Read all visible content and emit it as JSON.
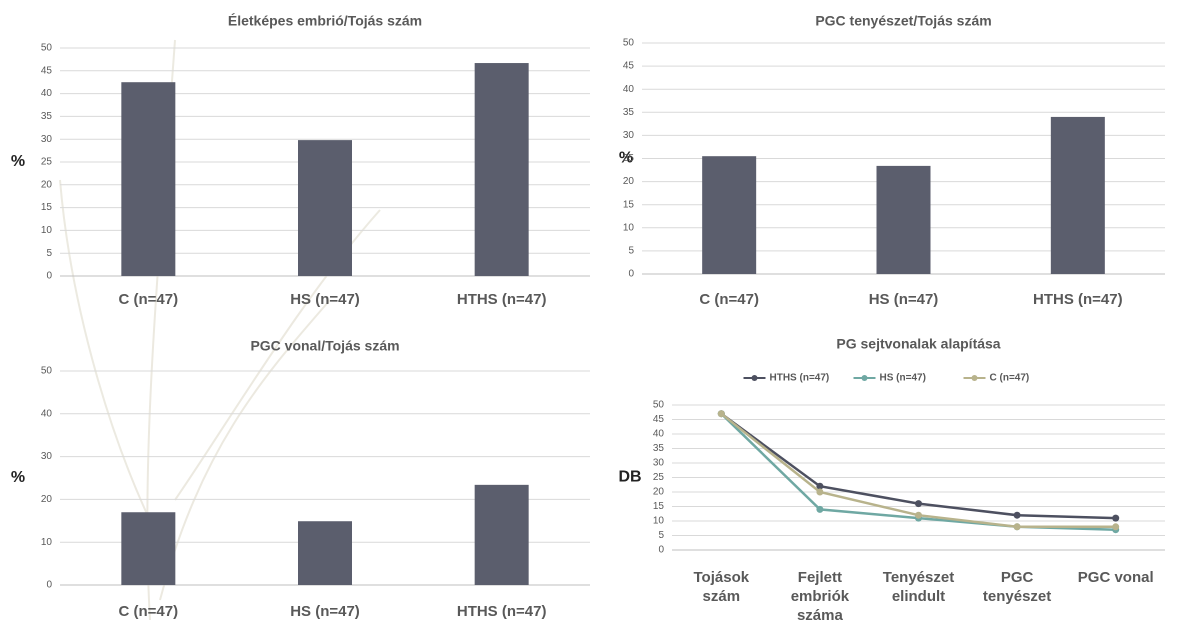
{
  "chart_data": [
    {
      "type": "bar",
      "title": "Életképes embrió/Tojás szám",
      "y_label": "%",
      "categories": [
        "C (n=47)",
        "HS (n=47)",
        "HTHS (n=47)"
      ],
      "values": [
        42.5,
        29.8,
        46.7
      ],
      "color": "#5b5e6d",
      "ylim": [
        0,
        50
      ],
      "yticks": [
        0,
        5,
        10,
        15,
        20,
        25,
        30,
        35,
        40,
        45,
        50
      ],
      "grid": true
    },
    {
      "type": "bar",
      "title": "PGC tenyészet/Tojás szám",
      "y_label": "%",
      "categories": [
        "C (n=47)",
        "HS (n=47)",
        "HTHS (n=47)"
      ],
      "values": [
        25.5,
        23.4,
        34
      ],
      "color": "#5b5e6d",
      "ylim": [
        0,
        50
      ],
      "yticks": [
        0,
        5,
        10,
        15,
        20,
        25,
        30,
        35,
        40,
        45,
        50
      ],
      "grid": true
    },
    {
      "type": "bar",
      "title": "PGC vonal/Tojás szám",
      "y_label": "%",
      "categories": [
        "C (n=47)",
        "HS (n=47)",
        "HTHS (n=47)"
      ],
      "values": [
        17,
        14.9,
        23.4
      ],
      "color": "#5b5e6d",
      "ylim": [
        0,
        50
      ],
      "yticks": [
        0,
        10,
        20,
        30,
        40,
        50
      ],
      "grid": true
    },
    {
      "type": "line",
      "title": "PG sejtvonalak alapítása",
      "y_label": "DB",
      "categories": [
        "Tojások szám",
        "Fejlett embriók száma",
        "Tenyészet elindult",
        "PGC tenyészet",
        "PGC vonal"
      ],
      "series": [
        {
          "name": "HTHS (n=47)",
          "color": "#4d5060",
          "values": [
            47,
            22,
            16,
            12,
            11
          ]
        },
        {
          "name": "HS (n=47)",
          "color": "#6fa8a3",
          "values": [
            47,
            14,
            11,
            8,
            7
          ]
        },
        {
          "name": "C (n=47)",
          "color": "#b8b38c",
          "values": [
            47,
            20,
            12,
            8,
            8
          ]
        }
      ],
      "ylim": [
        0,
        50
      ],
      "yticks": [
        0,
        5,
        10,
        15,
        20,
        25,
        30,
        35,
        40,
        45,
        50
      ],
      "grid": true,
      "legend": "top"
    }
  ]
}
